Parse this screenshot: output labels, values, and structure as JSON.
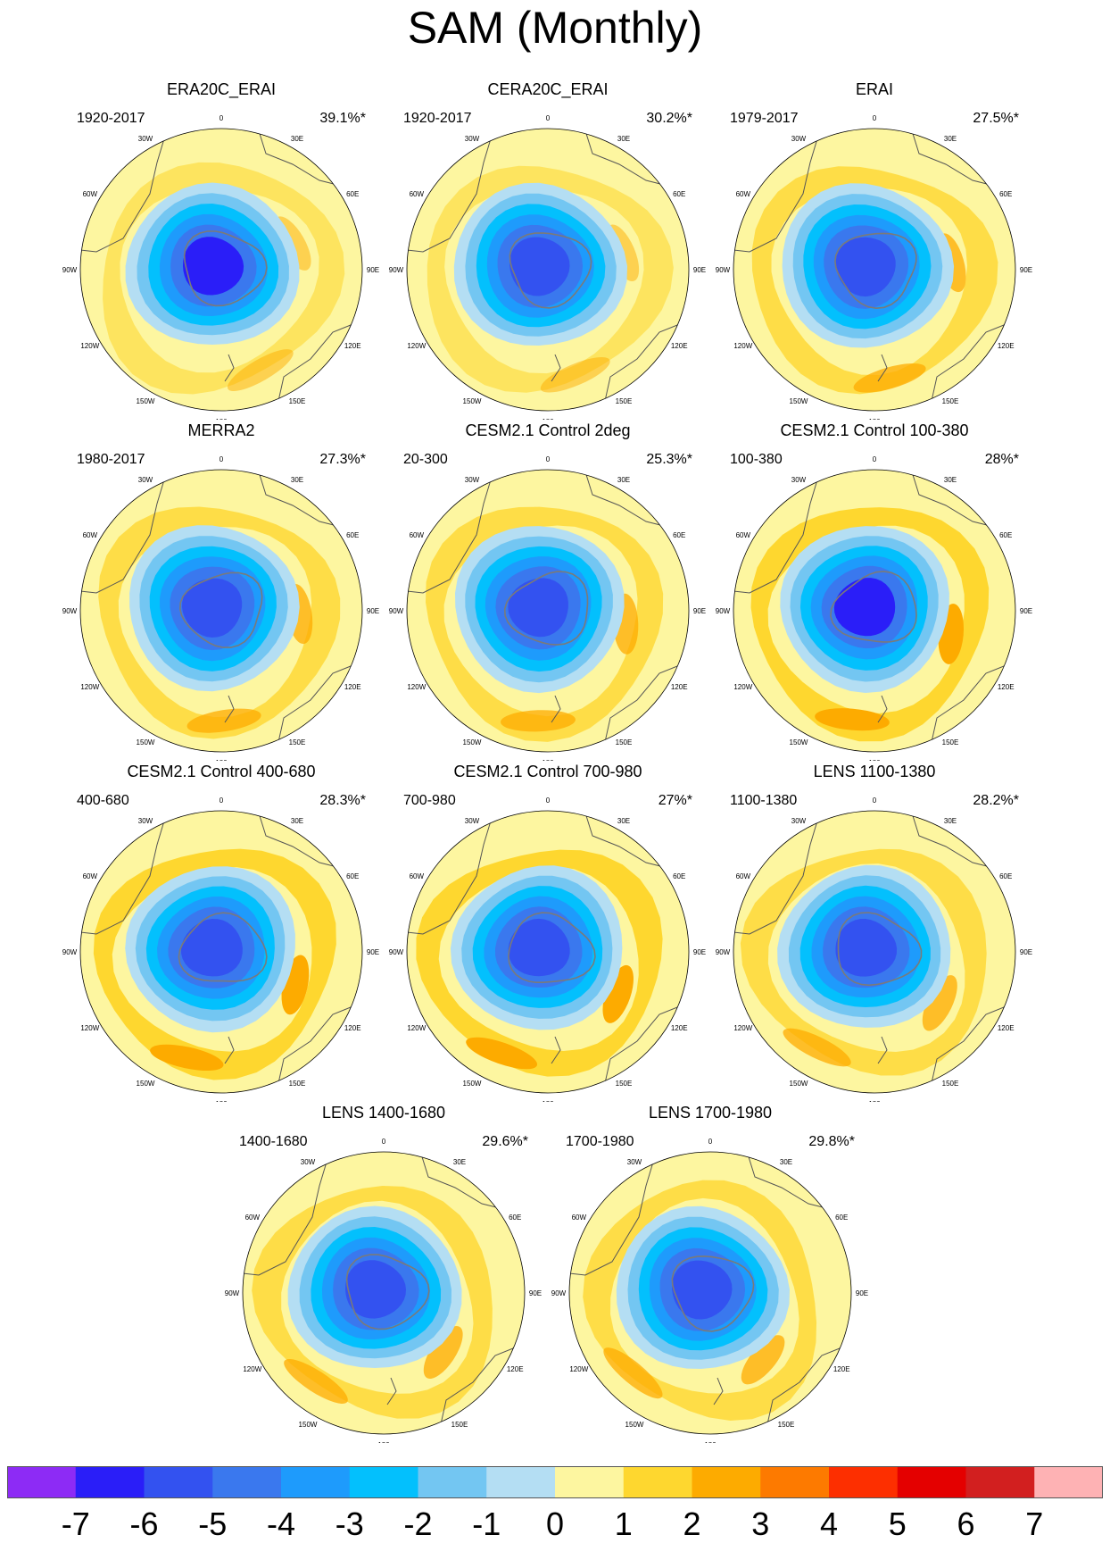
{
  "title": "SAM (Monthly)",
  "lon_labels": {
    "l0": "0",
    "l30e": "30E",
    "l60e": "60E",
    "l90e": "90E",
    "l120e": "120E",
    "l150e": "150E",
    "l180": "180",
    "l150w": "150W",
    "l120w": "120W",
    "l90w": "90W",
    "l60w": "60W",
    "l30w": "30W"
  },
  "panels": [
    {
      "title": "ERA20C_ERAI",
      "period": "1920-2017",
      "variance": "39.1%*",
      "low_color": "#2a1ef8",
      "ring": "weak",
      "bg": "#fdf6a0"
    },
    {
      "title": "CERA20C_ERAI",
      "period": "1920-2017",
      "variance": "30.2%*",
      "low_color": "#3352f0",
      "ring": "weak",
      "bg": "#fdf6a0"
    },
    {
      "title": "ERAI",
      "period": "1979-2017",
      "variance": "27.5%*",
      "low_color": "#3352f0",
      "ring": "moderate",
      "bg": "#fdf6a0"
    },
    {
      "title": "MERRA2",
      "period": "1980-2017",
      "variance": "27.3%*",
      "low_color": "#3352f0",
      "ring": "moderate",
      "bg": "#fdf6a0"
    },
    {
      "title": "CESM2.1 Control 2deg",
      "period": "20-300",
      "variance": "25.3%*",
      "low_color": "#3352f0",
      "ring": "moderate",
      "bg": "#fdf6a0"
    },
    {
      "title": "CESM2.1 Control 100-380",
      "period": "100-380",
      "variance": "28%*",
      "low_color": "#2a1ef8",
      "ring": "strong",
      "bg": "#fdf6a0"
    },
    {
      "title": "CESM2.1 Control 400-680",
      "period": "400-680",
      "variance": "28.3%*",
      "low_color": "#3352f0",
      "ring": "strong",
      "bg": "#fdf6a0"
    },
    {
      "title": "CESM2.1 Control 700-980",
      "period": "700-980",
      "variance": "27%*",
      "low_color": "#3352f0",
      "ring": "strong",
      "bg": "#fdf6a0"
    },
    {
      "title": "LENS 1100-1380",
      "period": "1100-1380",
      "variance": "28.2%*",
      "low_color": "#3352f0",
      "ring": "moderate",
      "bg": "#fdf6a0"
    },
    {
      "title": "LENS 1400-1680",
      "period": "1400-1680",
      "variance": "29.6%*",
      "low_color": "#3352f0",
      "ring": "moderate",
      "bg": "#fdf6a0"
    },
    {
      "title": "LENS 1700-1980",
      "period": "1700-1980",
      "variance": "29.8%*",
      "low_color": "#3352f0",
      "ring": "moderate",
      "bg": "#fdf6a0"
    }
  ],
  "colorbar": {
    "colors": [
      "#8d2bf5",
      "#2a1ef8",
      "#3352f0",
      "#3a78ee",
      "#1e9bfc",
      "#03c0fd",
      "#73c6f2",
      "#b4def3",
      "#fdf6a0",
      "#fed72f",
      "#fdab00",
      "#fd7a00",
      "#fd2f00",
      "#e40000",
      "#d21f1f",
      "#feb2b4"
    ],
    "labels": [
      "-7",
      "-6",
      "-5",
      "-4",
      "-3",
      "-2",
      "-1",
      "0",
      "1",
      "2",
      "3",
      "4",
      "5",
      "6",
      "7"
    ]
  }
}
